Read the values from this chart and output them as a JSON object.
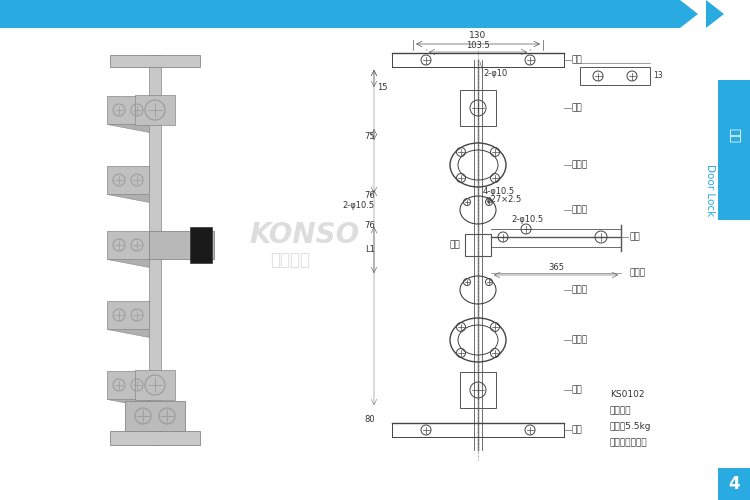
{
  "page_bg": "#ffffff",
  "header_bar_color": "#29abe2",
  "title_text": "门锁",
  "title_color": "#29abe2",
  "side_tab_text": "门锁",
  "side_tab_en": "Door Lock",
  "side_tab_bg": "#29abe2",
  "side_en_color": "#29abe2",
  "page_number": "4",
  "page_num_bg": "#29abe2",
  "product_code": "KS0102",
  "material": "材质：钢",
  "weight": "重量：5.5kg",
  "surface": "表面处理：镀锌",
  "watermark1": "KONSO",
  "watermark2": "坤映金属"
}
